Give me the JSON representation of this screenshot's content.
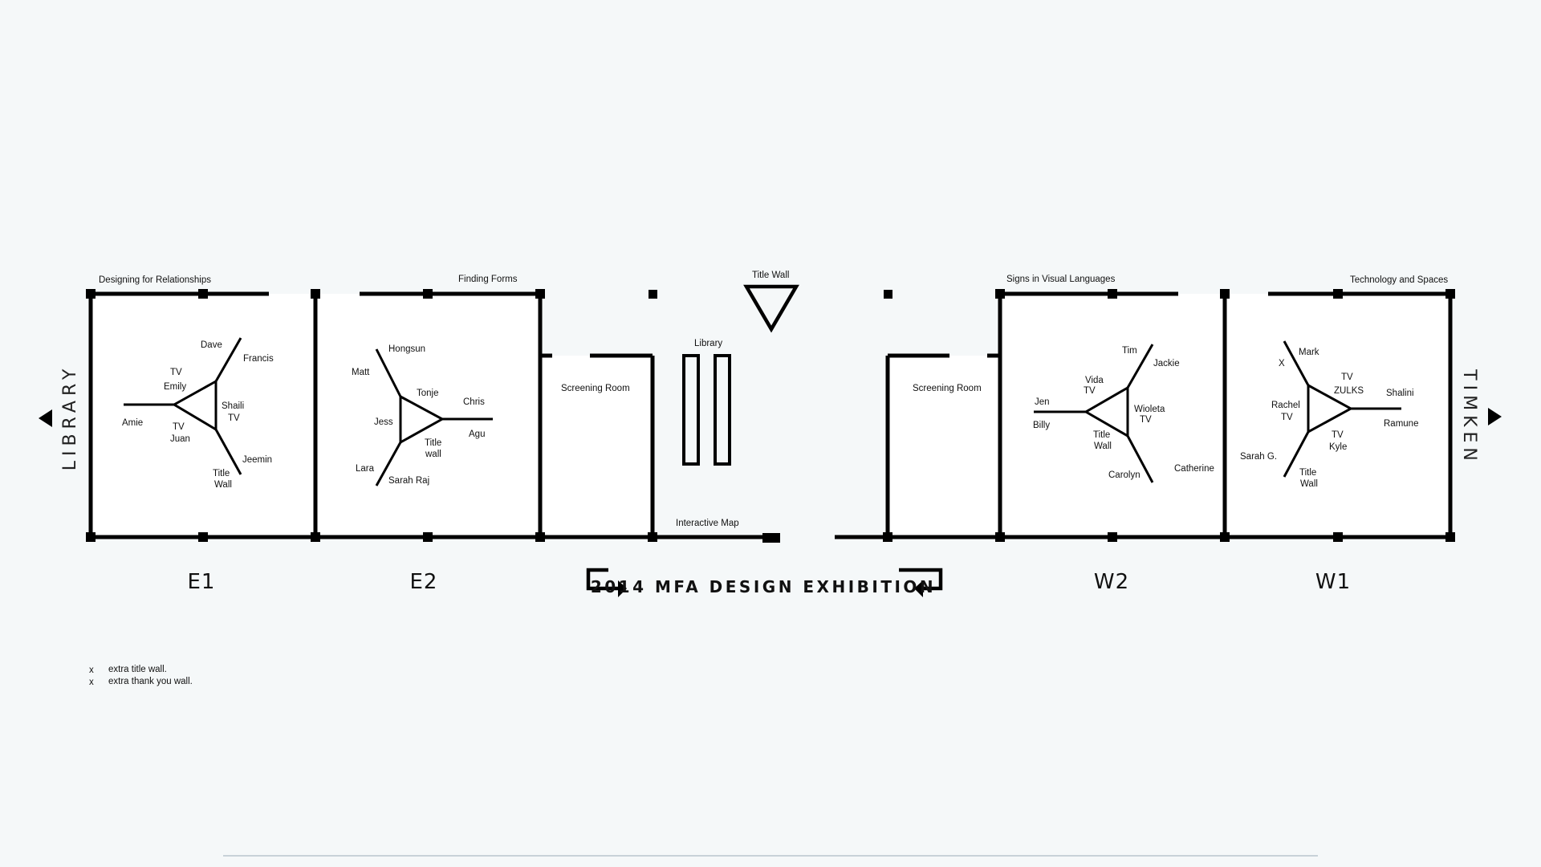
{
  "side_labels": {
    "left": "LIBRARY",
    "right": "TIMKEN"
  },
  "section_titles": {
    "e1": "Designing for Relationships",
    "e2": "Finding Forms",
    "w2": "Signs in Visual Languages",
    "w1": "Technology and Spaces"
  },
  "center": {
    "title_wall": "Title Wall",
    "library": "Library",
    "screening_left": "Screening Room",
    "screening_right": "Screening Room",
    "interactive_map": "Interactive Map"
  },
  "rooms": {
    "e1": {
      "label": "E1",
      "names": {
        "dave": "Dave",
        "francis": "Francis",
        "tv_top": "TV",
        "emily": "Emily",
        "shaili": "Shaili",
        "shaili_tv": "TV",
        "amie": "Amie",
        "tv_bottom": "TV",
        "juan": "Juan",
        "jeemin": "Jeemin",
        "title": "Title",
        "wall": "Wall"
      }
    },
    "e2": {
      "label": "E2",
      "names": {
        "hongsun": "Hongsun",
        "matt": "Matt",
        "tonje": "Tonje",
        "chris": "Chris",
        "jess": "Jess",
        "agu": "Agu",
        "title": "Title",
        "wall": "wall",
        "lara": "Lara",
        "sarah_raj": "Sarah Raj"
      }
    },
    "w2": {
      "label": "W2",
      "names": {
        "tim": "Tim",
        "jackie": "Jackie",
        "vida": "Vida",
        "vida_tv": "TV",
        "jen": "Jen",
        "billy": "Billy",
        "wioleta": "Wioleta",
        "wioleta_tv": "TV",
        "title": "Title",
        "wall": "Wall",
        "carolyn": "Carolyn",
        "catherine": "Catherine"
      }
    },
    "w1": {
      "label": "W1",
      "names": {
        "mark": "Mark",
        "x": "X",
        "tv_a": "TV",
        "zulks": "ZULKS",
        "shalini": "Shalini",
        "rachel": "Rachel",
        "rachel_tv": "TV",
        "ramune": "Ramune",
        "tv_b": "TV",
        "kyle": "Kyle",
        "sarah_g": "Sarah G.",
        "title": "Title",
        "wall": "Wall"
      }
    }
  },
  "banner": "2014 MFA DESIGN EXHIBITION",
  "legend": [
    {
      "mark": "x",
      "text": "extra title wall."
    },
    {
      "mark": "x",
      "text": "extra thank you wall."
    }
  ]
}
